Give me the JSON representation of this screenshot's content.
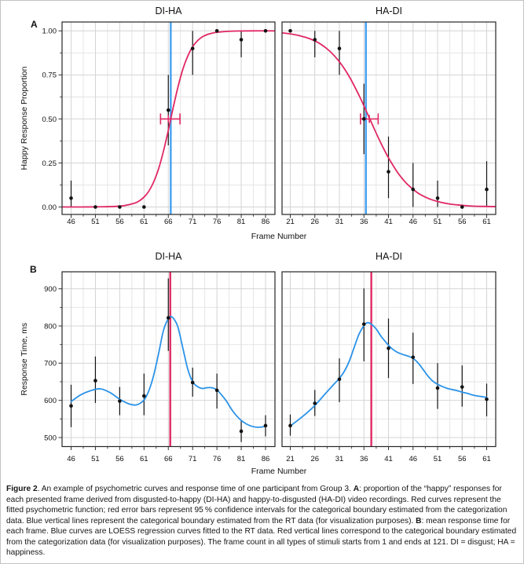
{
  "labels": {
    "panel_a": "A",
    "panel_b": "B"
  },
  "colors": {
    "red_curve": "#E02863",
    "red_boundary": "#DF2B64",
    "blue_curve": "#2B93E8",
    "blue_boundary": "#43A0F2",
    "point_black": "#121212",
    "grid_major": "#D4D4D4",
    "grid_minor": "#E3E3E3",
    "panel_border": "#262626",
    "tick_color": "#333333",
    "text_color": "#111111"
  },
  "chart_data": {
    "type": "scatter",
    "rows": [
      {
        "name": "A",
        "ylabel": "Happy Response Proportion",
        "xlabel": "Frame Number",
        "y_range": [
          -0.0424,
          1.0504
        ],
        "y_ticks": [
          {
            "v": 0.0,
            "label": "0.00"
          },
          {
            "v": 0.25,
            "label": "0.25"
          },
          {
            "v": 0.5,
            "label": "0.50"
          },
          {
            "v": 0.75,
            "label": "0.75"
          },
          {
            "v": 1.0,
            "label": "1.00"
          }
        ],
        "y_minor": [
          0.125,
          0.375,
          0.625,
          0.875
        ],
        "panels": [
          {
            "title": "DI-HA",
            "x_range": [
              44.14,
              87.94
            ],
            "x_ticks": [
              46,
              51,
              56,
              61,
              66,
              71,
              76,
              81,
              86
            ],
            "points": [
              {
                "x": 46,
                "y": 0.05,
                "lo": 0.0,
                "hi": 0.15
              },
              {
                "x": 51,
                "y": 0.0,
                "lo": 0.0,
                "hi": 0.0
              },
              {
                "x": 56,
                "y": 0.0,
                "lo": 0.0,
                "hi": 0.0
              },
              {
                "x": 61,
                "y": 0.0,
                "lo": 0.0,
                "hi": 0.0
              },
              {
                "x": 66,
                "y": 0.55,
                "lo": 0.35,
                "hi": 0.75
              },
              {
                "x": 71,
                "y": 0.9,
                "lo": 0.75,
                "hi": 1.0
              },
              {
                "x": 76,
                "y": 1.0,
                "lo": 1.0,
                "hi": 1.0
              },
              {
                "x": 81,
                "y": 0.95,
                "lo": 0.85,
                "hi": 1.0
              },
              {
                "x": 86,
                "y": 1.0,
                "lo": 1.0,
                "hi": 1.0
              }
            ],
            "curve": [
              [
                44.2,
                0.0
              ],
              [
                48,
                0.0
              ],
              [
                52,
                0.001
              ],
              [
                55,
                0.003
              ],
              [
                57,
                0.008
              ],
              [
                59,
                0.021
              ],
              [
                60,
                0.034
              ],
              [
                61,
                0.056
              ],
              [
                62,
                0.09
              ],
              [
                63,
                0.143
              ],
              [
                64,
                0.217
              ],
              [
                65,
                0.317
              ],
              [
                66,
                0.436
              ],
              [
                66.5,
                0.5
              ],
              [
                67,
                0.564
              ],
              [
                68,
                0.683
              ],
              [
                69,
                0.783
              ],
              [
                70,
                0.857
              ],
              [
                71,
                0.91
              ],
              [
                72,
                0.944
              ],
              [
                73,
                0.966
              ],
              [
                74,
                0.979
              ],
              [
                75,
                0.987
              ],
              [
                76,
                0.992
              ],
              [
                78,
                0.997
              ],
              [
                80,
                0.999
              ],
              [
                83,
                1.0
              ],
              [
                87.9,
                1.0
              ]
            ],
            "curve_color": "red",
            "vline": {
              "x": 66.5,
              "color": "blue"
            },
            "ci": {
              "y": 0.5,
              "lo": 64.4,
              "hi": 68.4,
              "center": 66.0
            }
          },
          {
            "title": "HA-DI",
            "x_range": [
              19.32,
              62.84
            ],
            "x_ticks": [
              21,
              26,
              31,
              36,
              41,
              46,
              51,
              56,
              61
            ],
            "points": [
              {
                "x": 21,
                "y": 1.0,
                "lo": 1.0,
                "hi": 1.0
              },
              {
                "x": 26,
                "y": 0.95,
                "lo": 0.85,
                "hi": 1.0
              },
              {
                "x": 31,
                "y": 0.9,
                "lo": 0.75,
                "hi": 1.0
              },
              {
                "x": 36,
                "y": 0.5,
                "lo": 0.3,
                "hi": 0.7
              },
              {
                "x": 41,
                "y": 0.2,
                "lo": 0.05,
                "hi": 0.4
              },
              {
                "x": 46,
                "y": 0.1,
                "lo": 0.0,
                "hi": 0.25
              },
              {
                "x": 51,
                "y": 0.05,
                "lo": 0.0,
                "hi": 0.15
              },
              {
                "x": 56,
                "y": 0.0,
                "lo": 0.0,
                "hi": 0.0
              },
              {
                "x": 61,
                "y": 0.1,
                "lo": 0.0,
                "hi": 0.26
              }
            ],
            "curve": [
              [
                19.3,
                0.989
              ],
              [
                21,
                0.983
              ],
              [
                23,
                0.972
              ],
              [
                25,
                0.955
              ],
              [
                27,
                0.928
              ],
              [
                29,
                0.886
              ],
              [
                31,
                0.825
              ],
              [
                33,
                0.741
              ],
              [
                35,
                0.634
              ],
              [
                36,
                0.574
              ],
              [
                37,
                0.512
              ],
              [
                38,
                0.45
              ],
              [
                39,
                0.389
              ],
              [
                40,
                0.332
              ],
              [
                41,
                0.279
              ],
              [
                42,
                0.233
              ],
              [
                43,
                0.19
              ],
              [
                44,
                0.155
              ],
              [
                45,
                0.125
              ],
              [
                47,
                0.079
              ],
              [
                49,
                0.05
              ],
              [
                51,
                0.031
              ],
              [
                53,
                0.019
              ],
              [
                55,
                0.012
              ],
              [
                57,
                0.007
              ],
              [
                59,
                0.004
              ],
              [
                62.8,
                0.002
              ]
            ],
            "curve_color": "red",
            "vline": {
              "x": 36.4,
              "color": "blue"
            },
            "ci": {
              "y": 0.5,
              "lo": 35.3,
              "hi": 38.9,
              "center": 37.1
            }
          }
        ]
      },
      {
        "name": "B",
        "ylabel": "Response Time, ms",
        "xlabel": "Frame Number",
        "y_range": [
          475.7,
          945.8
        ],
        "y_ticks": [
          {
            "v": 500,
            "label": "500"
          },
          {
            "v": 600,
            "label": "600"
          },
          {
            "v": 700,
            "label": "700"
          },
          {
            "v": 800,
            "label": "800"
          },
          {
            "v": 900,
            "label": "900"
          }
        ],
        "y_minor": [
          550,
          650,
          750,
          850
        ],
        "panels": [
          {
            "title": "DI-HA",
            "x_range": [
              44.14,
              87.94
            ],
            "x_ticks": [
              46,
              51,
              56,
              61,
              66,
              71,
              76,
              81,
              86
            ],
            "points": [
              {
                "x": 46,
                "y": 585,
                "lo": 528,
                "hi": 642
              },
              {
                "x": 51,
                "y": 653,
                "lo": 593,
                "hi": 718
              },
              {
                "x": 56,
                "y": 598,
                "lo": 560,
                "hi": 636
              },
              {
                "x": 61,
                "y": 612,
                "lo": 560,
                "hi": 672
              },
              {
                "x": 66,
                "y": 822,
                "lo": 733,
                "hi": 928
              },
              {
                "x": 71,
                "y": 648,
                "lo": 610,
                "hi": 688
              },
              {
                "x": 76,
                "y": 627,
                "lo": 578,
                "hi": 672
              },
              {
                "x": 81,
                "y": 517,
                "lo": 488,
                "hi": 547
              },
              {
                "x": 86,
                "y": 532,
                "lo": 503,
                "hi": 560
              }
            ],
            "curve": [
              [
                46,
                597
              ],
              [
                48,
                615
              ],
              [
                50,
                626
              ],
              [
                52,
                631
              ],
              [
                54,
                621
              ],
              [
                56,
                603
              ],
              [
                58,
                590
              ],
              [
                59.5,
                588
              ],
              [
                61,
                601
              ],
              [
                62,
                626
              ],
              [
                63,
                668
              ],
              [
                64,
                726
              ],
              [
                65,
                788
              ],
              [
                66,
                820
              ],
              [
                66.6,
                825
              ],
              [
                67.3,
                816
              ],
              [
                68,
                796
              ],
              [
                69,
                740
              ],
              [
                70,
                684
              ],
              [
                71,
                650
              ],
              [
                72,
                637
              ],
              [
                73,
                632
              ],
              [
                74,
                634
              ],
              [
                75,
                634
              ],
              [
                76,
                628
              ],
              [
                77,
                614
              ],
              [
                78,
                597
              ],
              [
                79,
                576
              ],
              [
                80,
                559
              ],
              [
                81,
                546
              ],
              [
                82,
                537
              ],
              [
                83,
                531
              ],
              [
                84,
                528
              ],
              [
                85,
                528
              ],
              [
                86,
                530
              ]
            ],
            "curve_color": "blue",
            "vline": {
              "x": 66.4,
              "color": "red"
            }
          },
          {
            "title": "HA-DI",
            "x_range": [
              19.32,
              62.84
            ],
            "x_ticks": [
              21,
              26,
              31,
              36,
              41,
              46,
              51,
              56,
              61
            ],
            "points": [
              {
                "x": 21,
                "y": 532,
                "lo": 505,
                "hi": 562
              },
              {
                "x": 26,
                "y": 592,
                "lo": 558,
                "hi": 628
              },
              {
                "x": 31,
                "y": 657,
                "lo": 595,
                "hi": 713
              },
              {
                "x": 36,
                "y": 805,
                "lo": 705,
                "hi": 901
              },
              {
                "x": 41,
                "y": 740,
                "lo": 660,
                "hi": 820
              },
              {
                "x": 46,
                "y": 716,
                "lo": 644,
                "hi": 782
              },
              {
                "x": 51,
                "y": 633,
                "lo": 577,
                "hi": 700
              },
              {
                "x": 56,
                "y": 636,
                "lo": 583,
                "hi": 694
              },
              {
                "x": 61,
                "y": 603,
                "lo": 557,
                "hi": 645
              }
            ],
            "curve": [
              [
                21,
                531
              ],
              [
                22,
                541
              ],
              [
                24,
                562
              ],
              [
                26,
                586
              ],
              [
                28,
                616
              ],
              [
                30,
                645
              ],
              [
                31,
                659
              ],
              [
                32,
                678
              ],
              [
                33,
                705
              ],
              [
                34,
                742
              ],
              [
                35,
                778
              ],
              [
                36,
                801
              ],
              [
                36.7,
                809
              ],
              [
                37.5,
                805
              ],
              [
                38.5,
                792
              ],
              [
                39.5,
                772
              ],
              [
                40.5,
                756
              ],
              [
                41,
                748
              ],
              [
                42,
                736
              ],
              [
                43,
                728
              ],
              [
                44,
                723
              ],
              [
                45,
                719
              ],
              [
                46,
                713
              ],
              [
                47,
                701
              ],
              [
                48,
                684
              ],
              [
                49,
                666
              ],
              [
                50,
                652
              ],
              [
                51,
                643
              ],
              [
                52,
                637
              ],
              [
                53,
                632
              ],
              [
                54,
                629
              ],
              [
                55,
                626
              ],
              [
                56,
                622
              ],
              [
                57,
                619
              ],
              [
                58,
                615
              ],
              [
                59,
                612
              ],
              [
                60,
                610
              ],
              [
                61,
                608
              ]
            ],
            "curve_color": "blue",
            "vline": {
              "x": 37.5,
              "color": "red"
            }
          }
        ]
      }
    ]
  },
  "caption": {
    "segments": [
      {
        "text": "Figure 2",
        "bold": true
      },
      {
        "text": ". An example of psychometric curves and response time of one participant from Group 3. ",
        "bold": false
      },
      {
        "text": "A",
        "bold": true
      },
      {
        "text": ": proportion of the “happy” responses for each presented frame derived from disgusted-to-happy (DI-HA) and happy-to-disgusted (HA-DI) video recordings. Red curves represent the fitted psychometric function; red error bars represent 95 % confidence intervals for the categorical boundary estimated from the categorization data. Blue vertical lines represent the categorical boundary estimated from the RT data (for visualization purposes). ",
        "bold": false
      },
      {
        "text": "B",
        "bold": true
      },
      {
        "text": ": mean response time for each frame. Blue curves are LOESS regression curves fitted to the RT data. Red vertical lines correspond to the categorical boundary estimated from the categorization data (for visualization purposes). The frame count in all types of stimuli starts from 1 and ends at 121. DI = disgust; HA = happiness.",
        "bold": false
      }
    ]
  }
}
